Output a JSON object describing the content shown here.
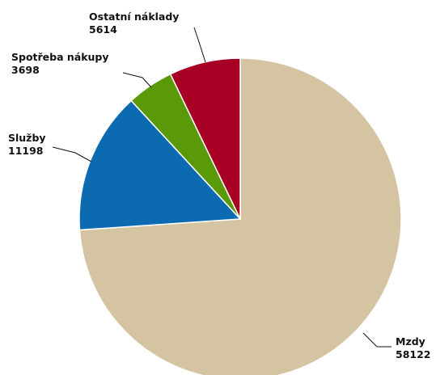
{
  "chart_data": {
    "type": "pie",
    "categories": [
      "Mzdy",
      "Služby",
      "Spotřeba nákupy",
      "Ostatní náklady"
    ],
    "values": [
      58122,
      11198,
      3698,
      5614
    ],
    "colors": [
      "#d5c4a1",
      "#0c6bb0",
      "#5a9a08",
      "#a80024"
    ],
    "labels": [
      {
        "name": "Mzdy",
        "value": "58122"
      },
      {
        "name": "Služby",
        "value": "11198"
      },
      {
        "name": "Spotřeba nákupy",
        "value": "3698"
      },
      {
        "name": "Ostatní náklady",
        "value": "5614"
      }
    ],
    "start_angle": "12 o'clock",
    "direction": "clockwise",
    "legend": "none",
    "title": ""
  }
}
